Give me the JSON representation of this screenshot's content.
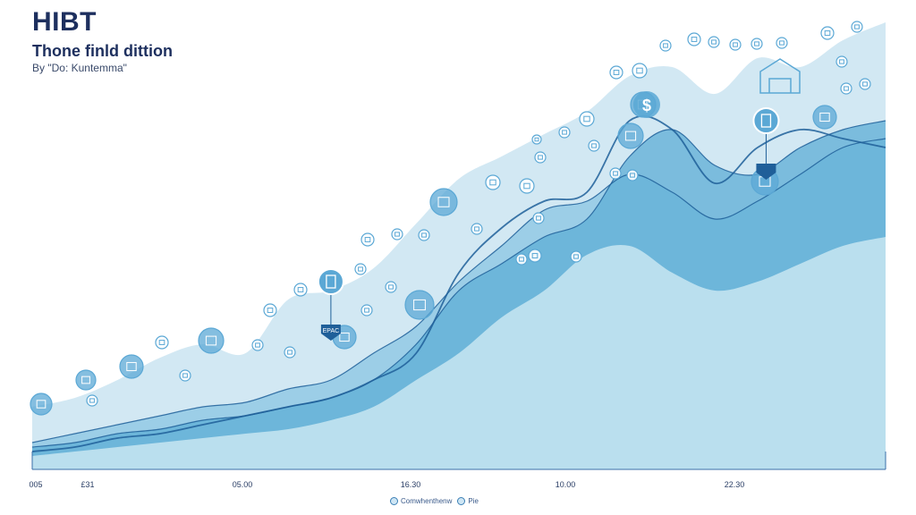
{
  "header": {
    "title": "HIBT",
    "subtitle": "Thone finld dittion",
    "byline": "By \"Do: Kuntemma\""
  },
  "legend": [
    {
      "label": "Comwhenthenw"
    },
    {
      "label": "Pie"
    }
  ],
  "colors": {
    "axis": "#3a6fa8",
    "line": "#1f5f99",
    "layer_back": "#cde6f2",
    "layer_mid": "#8fc7e3",
    "layer_front": "#5eaed6",
    "layer_base": "#bfe1ef",
    "icon": "#5ba8d5"
  },
  "chart_data": {
    "type": "area",
    "title": "HIBT",
    "subtitle": "Thone finld dittion",
    "xlabel": "",
    "ylabel": "",
    "x_ticks": [
      "005",
      "£31",
      "05.00",
      "16.30",
      "10.00",
      "22.30"
    ],
    "x_range": [
      0,
      100
    ],
    "ylim": [
      0,
      100
    ],
    "grid": false,
    "legend_position": "bottom-center",
    "x": [
      0,
      5,
      10,
      15,
      20,
      25,
      30,
      35,
      40,
      45,
      50,
      55,
      60,
      65,
      70,
      75,
      80,
      85,
      90,
      95,
      100
    ],
    "series": [
      {
        "values": [
          14,
          16,
          20,
          25,
          28,
          26,
          38,
          40,
          45,
          55,
          65,
          70,
          75,
          80,
          88,
          90,
          84,
          92,
          90,
          96,
          100
        ]
      },
      {
        "values": [
          6,
          8,
          10,
          12,
          14,
          15,
          18,
          20,
          26,
          32,
          42,
          50,
          58,
          60,
          66,
          62,
          56,
          60,
          66,
          72,
          74
        ]
      },
      {
        "values": [
          5,
          6,
          8,
          9,
          11,
          12,
          14,
          16,
          20,
          28,
          40,
          46,
          52,
          56,
          70,
          76,
          68,
          66,
          72,
          76,
          78
        ]
      },
      {
        "values": [
          3,
          4,
          5,
          6,
          7,
          8,
          9,
          11,
          14,
          20,
          26,
          34,
          40,
          48,
          50,
          44,
          40,
          42,
          46,
          50,
          52
        ]
      },
      {
        "values": [
          4,
          5,
          7,
          8,
          10,
          12,
          14,
          16,
          20,
          26,
          44,
          54,
          60,
          62,
          78,
          76,
          64,
          72,
          76,
          74,
          72
        ]
      }
    ],
    "markers": [
      {
        "x": 35,
        "y": 30,
        "label": "EPAC"
      },
      {
        "x": 86,
        "y": 66,
        "label": ""
      }
    ]
  }
}
